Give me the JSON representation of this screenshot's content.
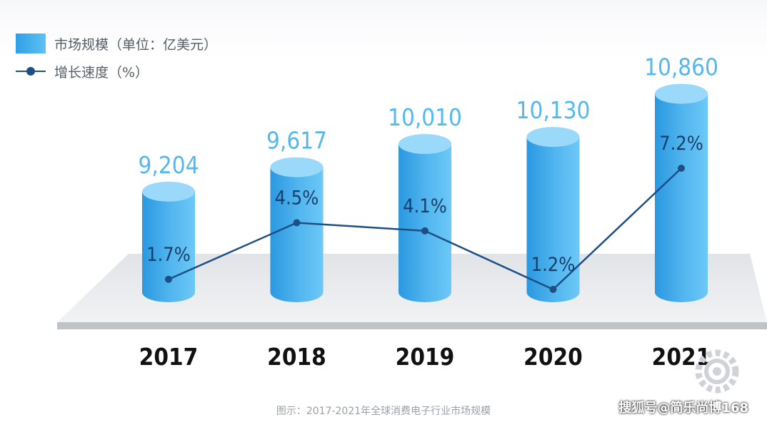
{
  "legend": {
    "bar_label": "市场规模（单位：亿美元）",
    "line_label": "增长速度（%）"
  },
  "caption": "图示：2017-2021年全球消费电子行业市场规模",
  "watermark": "搜狐号@简乐尚博168",
  "colors": {
    "bar_light": "#6cc8f7",
    "bar_dark": "#2a98e0",
    "bar_top": "#9ad9fa",
    "line": "#1d4f86",
    "value_label": "#52b8ee",
    "axis_label": "#111111",
    "platform": "#eceef0",
    "platform_edge": "#bfc3c8"
  },
  "chart_data": {
    "type": "bar",
    "title": "",
    "categories": [
      "2017",
      "2018",
      "2019",
      "2020",
      "2021"
    ],
    "series": [
      {
        "name": "市场规模（单位：亿美元）",
        "kind": "bar",
        "values": [
          9204,
          9617,
          10010,
          10130,
          10860
        ],
        "labels": [
          "9,204",
          "9,617",
          "10,010",
          "10,130",
          "10,860"
        ]
      },
      {
        "name": "增长速度（%）",
        "kind": "line",
        "values": [
          1.7,
          4.5,
          4.1,
          1.2,
          7.2
        ],
        "labels": [
          "1.7%",
          "4.5%",
          "4.1%",
          "1.2%",
          "7.2%"
        ]
      }
    ],
    "xlabel": "",
    "ylabel": "",
    "bar_ylim": [
      7500,
      11000
    ],
    "line_ylim": [
      0,
      9
    ],
    "grid": false,
    "legend_position": "top-left"
  }
}
